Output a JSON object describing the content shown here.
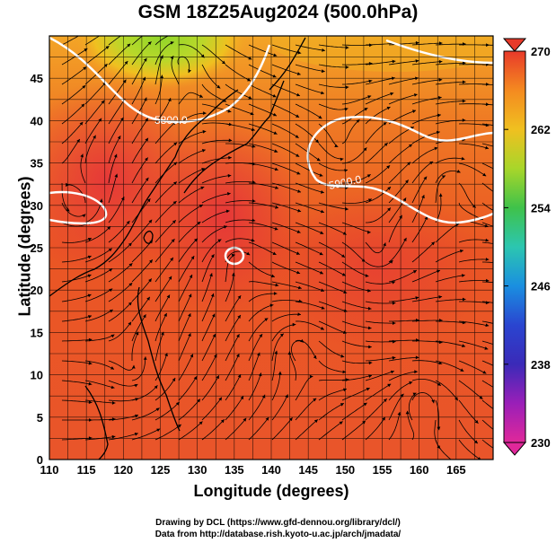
{
  "title": "GSM 18Z25Aug2024 (500.0hPa)",
  "xlabel": "Longitude (degrees)",
  "ylabel": "Latitude  (degrees)",
  "credits": {
    "line1": "Drawing by DCL (https://www.gfd-dennou.org/library/dcl/)",
    "line2": "Data from http://database.rish.kyoto-u.ac.jp/arch/jmadata/"
  },
  "axes": {
    "x_ticks": [
      "110",
      "115",
      "120",
      "125",
      "130",
      "135",
      "140",
      "145",
      "150",
      "155",
      "160",
      "165"
    ],
    "y_ticks": [
      "0",
      "5",
      "10",
      "15",
      "20",
      "25",
      "30",
      "35",
      "40",
      "45"
    ],
    "x_range": [
      110,
      170
    ],
    "y_range": [
      0,
      50
    ]
  },
  "colorbar": {
    "ticks": [
      "270",
      "262",
      "254",
      "246",
      "238",
      "230"
    ],
    "range": [
      230,
      270
    ],
    "colors": [
      "#e0289a",
      "#7a1fb0",
      "#2a2fb8",
      "#1a8fe0",
      "#27c9a0",
      "#3fc24a",
      "#a8d62a",
      "#f0c020",
      "#f49a20",
      "#ee5a22",
      "#e83a2a"
    ]
  },
  "contours": [
    {
      "label": "5800.0"
    },
    {
      "label": "5900.0"
    }
  ],
  "colors": {
    "field_warm": "#ea5a24",
    "field_hot": "#e73c2a",
    "field_orange": "#f29a25",
    "field_green": "#7ecf2a"
  }
}
